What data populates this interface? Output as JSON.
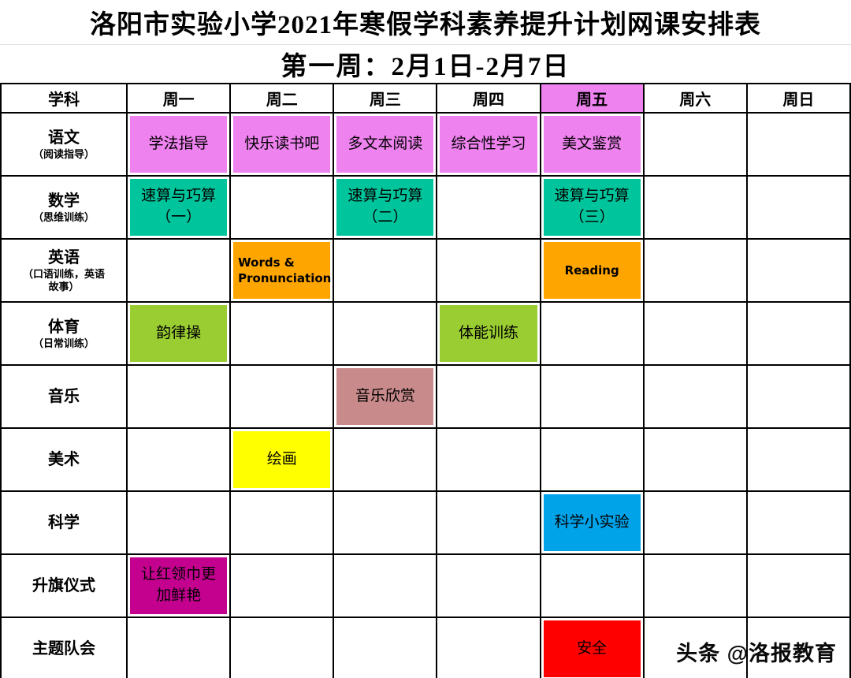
{
  "title": "洛阳市实验小学2021年寒假学科素养提升计划网课安排表",
  "subtitle": "第一周：2月1日-2月7日",
  "watermark": "头条 @洛报教育",
  "colors": {
    "chinese": "#EE82EE",
    "math": "#00C49B",
    "english": "#FFA500",
    "pe": "#9ACD32",
    "music": "#C88A8A",
    "art": "#FFFF00",
    "science": "#00A2E8",
    "flag": "#C4008F",
    "meeting": "#FF0000",
    "friday_header": "#EE82EE"
  },
  "table": {
    "headers": [
      {
        "label": "学科",
        "color": ""
      },
      {
        "label": "周一",
        "color": ""
      },
      {
        "label": "周二",
        "color": ""
      },
      {
        "label": "周三",
        "color": ""
      },
      {
        "label": "周四",
        "color": ""
      },
      {
        "label": "周五",
        "color": "#EE82EE"
      },
      {
        "label": "周六",
        "color": ""
      },
      {
        "label": "周日",
        "color": ""
      }
    ],
    "rows": [
      {
        "subject": "语文",
        "subject_note": "（阅读指导）",
        "cells": [
          {
            "text": "学法指导",
            "color": "#EE82EE"
          },
          {
            "text": "快乐读书吧",
            "color": "#EE82EE"
          },
          {
            "text": "多文本阅读",
            "color": "#EE82EE"
          },
          {
            "text": "综合性学习",
            "color": "#EE82EE"
          },
          {
            "text": "美文鉴赏",
            "color": "#EE82EE"
          },
          {
            "text": "",
            "color": ""
          },
          {
            "text": "",
            "color": ""
          }
        ]
      },
      {
        "subject": "数学",
        "subject_note": "（思维训练）",
        "cells": [
          {
            "text": "速算与巧算\n（一）",
            "color": "#00C49B"
          },
          {
            "text": "",
            "color": ""
          },
          {
            "text": "速算与巧算\n（二）",
            "color": "#00C49B"
          },
          {
            "text": "",
            "color": ""
          },
          {
            "text": "速算与巧算\n（三）",
            "color": "#00C49B"
          },
          {
            "text": "",
            "color": ""
          },
          {
            "text": "",
            "color": ""
          }
        ]
      },
      {
        "subject": "英语",
        "subject_note": "（口语训练，英语\n故事）",
        "cells": [
          {
            "text": "",
            "color": ""
          },
          {
            "text": "Words &\nPronunciation",
            "color": "#FFA500",
            "latin": true,
            "align": "left"
          },
          {
            "text": "",
            "color": ""
          },
          {
            "text": "",
            "color": ""
          },
          {
            "text": "Reading",
            "color": "#FFA500",
            "latin": true
          },
          {
            "text": "",
            "color": ""
          },
          {
            "text": "",
            "color": ""
          }
        ]
      },
      {
        "subject": "体育",
        "subject_note": "（日常训练）",
        "cells": [
          {
            "text": "韵律操",
            "color": "#9ACD32"
          },
          {
            "text": "",
            "color": ""
          },
          {
            "text": "",
            "color": ""
          },
          {
            "text": "体能训练",
            "color": "#9ACD32"
          },
          {
            "text": "",
            "color": ""
          },
          {
            "text": "",
            "color": ""
          },
          {
            "text": "",
            "color": ""
          }
        ]
      },
      {
        "subject": "音乐",
        "subject_note": "",
        "cells": [
          {
            "text": "",
            "color": ""
          },
          {
            "text": "",
            "color": ""
          },
          {
            "text": "音乐欣赏",
            "color": "#C88A8A"
          },
          {
            "text": "",
            "color": ""
          },
          {
            "text": "",
            "color": ""
          },
          {
            "text": "",
            "color": ""
          },
          {
            "text": "",
            "color": ""
          }
        ]
      },
      {
        "subject": "美术",
        "subject_note": "",
        "cells": [
          {
            "text": "",
            "color": ""
          },
          {
            "text": "绘画",
            "color": "#FFFF00"
          },
          {
            "text": "",
            "color": ""
          },
          {
            "text": "",
            "color": ""
          },
          {
            "text": "",
            "color": ""
          },
          {
            "text": "",
            "color": ""
          },
          {
            "text": "",
            "color": ""
          }
        ]
      },
      {
        "subject": "科学",
        "subject_note": "",
        "cells": [
          {
            "text": "",
            "color": ""
          },
          {
            "text": "",
            "color": ""
          },
          {
            "text": "",
            "color": ""
          },
          {
            "text": "",
            "color": ""
          },
          {
            "text": "科学小实验",
            "color": "#00A2E8"
          },
          {
            "text": "",
            "color": ""
          },
          {
            "text": "",
            "color": ""
          }
        ]
      },
      {
        "subject": "升旗仪式",
        "subject_note": "",
        "cells": [
          {
            "text": "让红领巾更\n加鲜艳",
            "color": "#C4008F"
          },
          {
            "text": "",
            "color": ""
          },
          {
            "text": "",
            "color": ""
          },
          {
            "text": "",
            "color": ""
          },
          {
            "text": "",
            "color": ""
          },
          {
            "text": "",
            "color": ""
          },
          {
            "text": "",
            "color": ""
          }
        ]
      },
      {
        "subject": "主题队会",
        "subject_note": "",
        "cells": [
          {
            "text": "",
            "color": ""
          },
          {
            "text": "",
            "color": ""
          },
          {
            "text": "",
            "color": ""
          },
          {
            "text": "",
            "color": ""
          },
          {
            "text": "安全",
            "color": "#FF0000"
          },
          {
            "text": "",
            "color": ""
          },
          {
            "text": "",
            "color": ""
          }
        ]
      }
    ]
  }
}
